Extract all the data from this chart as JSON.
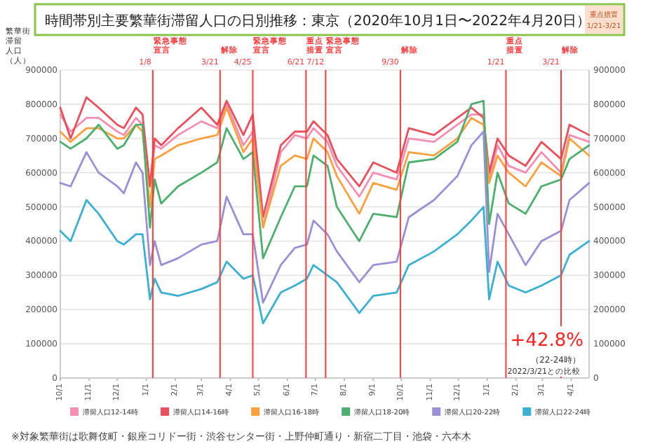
{
  "chart_data": {
    "type": "line",
    "title": "時間帯別主要繁華街滞留人口の日別推移：東京（2020年10月1日〜2022年4月20日）",
    "ylabel": "繁華街滞留人口（人）",
    "x": [
      "2020-10-01",
      "2020-10-12",
      "2020-10-29",
      "2020-11-11",
      "2020-12-01",
      "2020-12-08",
      "2020-12-21",
      "2020-12-28",
      "2021-01-05",
      "2021-01-10",
      "2021-01-17",
      "2021-02-04",
      "2021-03-01",
      "2021-03-18",
      "2021-03-28",
      "2021-04-15",
      "2021-04-25",
      "2021-05-06",
      "2021-05-25",
      "2021-06-09",
      "2021-06-22",
      "2021-06-29",
      "2021-07-14",
      "2021-07-24",
      "2021-08-17",
      "2021-09-01",
      "2021-09-26",
      "2021-10-09",
      "2021-11-05",
      "2021-11-30",
      "2021-12-15",
      "2021-12-28",
      "2022-01-03",
      "2022-01-12",
      "2022-01-24",
      "2022-02-11",
      "2022-02-28",
      "2022-03-21",
      "2022-03-30",
      "2022-04-20"
    ],
    "series": [
      {
        "name": "滞留人口12-14時",
        "color": "#f48fb1",
        "values": [
          770000,
          720000,
          760000,
          760000,
          720000,
          710000,
          760000,
          740000,
          560000,
          680000,
          670000,
          710000,
          750000,
          730000,
          800000,
          680000,
          720000,
          440000,
          660000,
          710000,
          700000,
          730000,
          690000,
          620000,
          530000,
          600000,
          580000,
          700000,
          690000,
          740000,
          770000,
          770000,
          580000,
          680000,
          620000,
          600000,
          660000,
          600000,
          710000,
          690000
        ]
      },
      {
        "name": "滞留人口14-16時",
        "color": "#e8505b",
        "values": [
          790000,
          700000,
          820000,
          790000,
          740000,
          730000,
          790000,
          770000,
          560000,
          700000,
          680000,
          730000,
          790000,
          740000,
          810000,
          710000,
          770000,
          470000,
          680000,
          720000,
          720000,
          750000,
          710000,
          640000,
          560000,
          630000,
          600000,
          730000,
          710000,
          760000,
          790000,
          760000,
          600000,
          700000,
          650000,
          620000,
          690000,
          640000,
          740000,
          710000
        ]
      },
      {
        "name": "滞留人口16-18時",
        "color": "#f9a03f",
        "values": [
          720000,
          690000,
          730000,
          730000,
          700000,
          700000,
          740000,
          720000,
          500000,
          640000,
          650000,
          680000,
          700000,
          710000,
          790000,
          660000,
          700000,
          440000,
          620000,
          650000,
          640000,
          700000,
          660000,
          590000,
          480000,
          570000,
          550000,
          660000,
          650000,
          700000,
          760000,
          740000,
          570000,
          650000,
          600000,
          560000,
          630000,
          590000,
          700000,
          650000
        ]
      },
      {
        "name": "滞留人口18-20時",
        "color": "#4caf6e",
        "values": [
          690000,
          670000,
          700000,
          740000,
          670000,
          680000,
          740000,
          740000,
          440000,
          580000,
          510000,
          560000,
          600000,
          630000,
          730000,
          640000,
          660000,
          350000,
          470000,
          560000,
          560000,
          650000,
          620000,
          500000,
          400000,
          480000,
          470000,
          630000,
          640000,
          690000,
          800000,
          810000,
          450000,
          600000,
          510000,
          480000,
          560000,
          580000,
          640000,
          680000
        ]
      },
      {
        "name": "滞留人口20-22時",
        "color": "#9b8fd6",
        "values": [
          570000,
          560000,
          660000,
          600000,
          560000,
          540000,
          630000,
          600000,
          330000,
          400000,
          330000,
          350000,
          390000,
          400000,
          530000,
          420000,
          420000,
          220000,
          330000,
          380000,
          390000,
          460000,
          420000,
          370000,
          280000,
          330000,
          340000,
          470000,
          520000,
          590000,
          680000,
          720000,
          310000,
          480000,
          420000,
          330000,
          400000,
          430000,
          520000,
          570000
        ]
      },
      {
        "name": "滞留人口22-24時",
        "color": "#3bb0d0",
        "values": [
          430000,
          400000,
          520000,
          480000,
          400000,
          390000,
          420000,
          420000,
          230000,
          290000,
          250000,
          240000,
          260000,
          280000,
          340000,
          290000,
          300000,
          160000,
          250000,
          270000,
          290000,
          330000,
          300000,
          280000,
          190000,
          240000,
          250000,
          330000,
          370000,
          420000,
          460000,
          500000,
          230000,
          340000,
          270000,
          250000,
          270000,
          300000,
          360000,
          400000
        ]
      }
    ],
    "xlim": [
      "2020-10-01",
      "2022-04-20"
    ],
    "ylim": [
      0,
      900000
    ],
    "yticks": [
      0,
      100000,
      200000,
      300000,
      400000,
      500000,
      600000,
      700000,
      800000,
      900000
    ],
    "y2lim": [
      0,
      900000
    ],
    "y2ticks": [
      0,
      100000,
      200000,
      300000,
      400000,
      500000,
      600000,
      700000,
      800000,
      900000
    ],
    "xticks": [
      {
        "value": "2020-10-01",
        "label": "10/1"
      },
      {
        "value": "2020-11-01",
        "label": "11/1"
      },
      {
        "value": "2020-12-01",
        "label": "12/1"
      },
      {
        "value": "2021-01-01",
        "label": "1/1"
      },
      {
        "value": "2021-02-01",
        "label": "2/1"
      },
      {
        "value": "2021-03-01",
        "label": "3/1"
      },
      {
        "value": "2021-04-01",
        "label": "4/1"
      },
      {
        "value": "2021-05-01",
        "label": "5/1"
      },
      {
        "value": "2021-06-01",
        "label": "6/1"
      },
      {
        "value": "2021-07-01",
        "label": "7/1"
      },
      {
        "value": "2021-08-01",
        "label": "8/1"
      },
      {
        "value": "2021-09-01",
        "label": "9/1"
      },
      {
        "value": "2021-10-01",
        "label": "10/1"
      },
      {
        "value": "2021-11-01",
        "label": "11/1"
      },
      {
        "value": "2021-12-01",
        "label": "12/1"
      },
      {
        "value": "2022-01-01",
        "label": "1/1"
      },
      {
        "value": "2022-02-01",
        "label": "2/1"
      },
      {
        "value": "2022-03-01",
        "label": "3/1"
      },
      {
        "value": "2022-04-01",
        "label": "4/1"
      }
    ],
    "grid": "y",
    "legend": "bottom",
    "line_style": "solid",
    "ref_lines": [
      {
        "axis": "x",
        "value": "2021-01-08",
        "label": "緊急事態宣言 1/8",
        "color": "#ff3b3b"
      },
      {
        "axis": "x",
        "value": "2021-03-21",
        "label": "解除 3/21",
        "color": "#ff3b3b"
      },
      {
        "axis": "x",
        "value": "2021-04-25",
        "label": "緊急事態宣言 4/25",
        "color": "#ff3b3b"
      },
      {
        "axis": "x",
        "value": "2021-06-21",
        "label": "重点措置 6/21",
        "color": "#ff3b3b"
      },
      {
        "axis": "x",
        "value": "2021-07-12",
        "label": "緊急事態宣言 7/12",
        "color": "#ff3b3b"
      },
      {
        "axis": "x",
        "value": "2021-09-30",
        "label": "解除 9/30",
        "color": "#ff3b3b"
      },
      {
        "axis": "x",
        "value": "2022-01-21",
        "label": "重点措置 1/21",
        "color": "#ff3b3b"
      },
      {
        "axis": "x",
        "value": "2022-03-21",
        "label": "解除 3/21",
        "color": "#ff3b3b"
      }
    ],
    "annotations": [
      "重点措置 1/21-3/21",
      "+42.8%",
      "（22-24時）",
      "2022/3/21との比較",
      "※対象繁華街は歌舞伎町・銀座コリドー街・渋谷センター街・上野仲町通り・新宿二丁目・池袋・六本木"
    ]
  }
}
